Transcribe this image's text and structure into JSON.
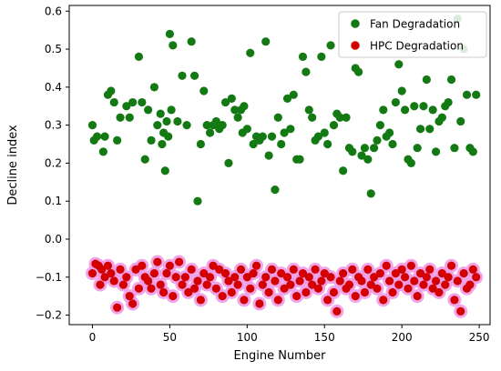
{
  "chart_data": {
    "type": "scatter",
    "xlabel": "Engine Number",
    "ylabel": "Decline index",
    "xlim": [
      -15,
      257
    ],
    "ylim": [
      -0.225,
      0.615
    ],
    "xticks": [
      0,
      50,
      100,
      150,
      200,
      250
    ],
    "yticks": [
      -0.2,
      -0.1,
      0.0,
      0.1,
      0.2,
      0.3,
      0.4,
      0.5,
      0.6
    ],
    "xtick_labels": [
      "0",
      "50",
      "100",
      "150",
      "200",
      "250"
    ],
    "ytick_labels": [
      "−0.2",
      "−0.1",
      "0.0",
      "0.1",
      "0.2",
      "0.3",
      "0.4",
      "0.5",
      "0.6"
    ],
    "grid": false,
    "legend_position": "top-right",
    "series": [
      {
        "name": "Fan Degradation",
        "color": "#137a13",
        "x": [
          0,
          1,
          3,
          7,
          8,
          10,
          12,
          14,
          16,
          18,
          22,
          24,
          26,
          30,
          32,
          34,
          36,
          38,
          40,
          42,
          44,
          45,
          46,
          47,
          48,
          49,
          50,
          51,
          52,
          55,
          58,
          61,
          64,
          66,
          68,
          70,
          72,
          74,
          76,
          78,
          80,
          82,
          84,
          86,
          88,
          90,
          92,
          94,
          96,
          97,
          98,
          100,
          102,
          104,
          106,
          108,
          110,
          112,
          114,
          116,
          118,
          120,
          122,
          124,
          126,
          128,
          130,
          132,
          134,
          136,
          138,
          140,
          142,
          144,
          146,
          148,
          150,
          152,
          154,
          156,
          158,
          160,
          162,
          164,
          166,
          168,
          170,
          172,
          174,
          176,
          178,
          180,
          182,
          184,
          186,
          188,
          190,
          192,
          194,
          196,
          198,
          200,
          202,
          204,
          206,
          208,
          210,
          212,
          214,
          216,
          218,
          220,
          222,
          224,
          226,
          228,
          230,
          232,
          234,
          236,
          238,
          240,
          242,
          244,
          246,
          248
        ],
        "y": [
          0.3,
          0.26,
          0.27,
          0.23,
          0.27,
          0.38,
          0.39,
          0.36,
          0.26,
          0.32,
          0.35,
          0.32,
          0.36,
          0.48,
          0.36,
          0.21,
          0.34,
          0.26,
          0.4,
          0.3,
          0.33,
          0.25,
          0.28,
          0.18,
          0.31,
          0.27,
          0.54,
          0.34,
          0.51,
          0.31,
          0.43,
          0.3,
          0.52,
          0.43,
          0.1,
          0.25,
          0.39,
          0.3,
          0.28,
          0.3,
          0.31,
          0.29,
          0.3,
          0.36,
          0.2,
          0.37,
          0.34,
          0.32,
          0.34,
          0.28,
          0.35,
          0.29,
          0.49,
          0.25,
          0.27,
          0.26,
          0.27,
          0.52,
          0.22,
          0.27,
          0.13,
          0.32,
          0.25,
          0.28,
          0.37,
          0.29,
          0.38,
          0.21,
          0.21,
          0.48,
          0.44,
          0.34,
          0.32,
          0.26,
          0.27,
          0.48,
          0.28,
          0.25,
          0.51,
          0.3,
          0.33,
          0.32,
          0.18,
          0.32,
          0.24,
          0.23,
          0.45,
          0.44,
          0.22,
          0.24,
          0.21,
          0.12,
          0.24,
          0.26,
          0.3,
          0.34,
          0.27,
          0.28,
          0.25,
          0.36,
          0.46,
          0.39,
          0.34,
          0.21,
          0.2,
          0.35,
          0.24,
          0.29,
          0.35,
          0.42,
          0.29,
          0.34,
          0.23,
          0.31,
          0.32,
          0.35,
          0.36,
          0.42,
          0.24,
          0.58,
          0.31,
          0.5,
          0.38,
          0.24,
          0.23,
          0.38
        ],
        "marker": "circle"
      },
      {
        "name": "HPC Degradation",
        "color": "#d40000",
        "x": [
          0,
          2,
          4,
          5,
          6,
          8,
          10,
          12,
          14,
          16,
          18,
          20,
          22,
          24,
          26,
          28,
          30,
          32,
          34,
          36,
          38,
          40,
          42,
          44,
          46,
          48,
          50,
          52,
          54,
          56,
          58,
          60,
          62,
          64,
          66,
          68,
          70,
          72,
          74,
          76,
          78,
          80,
          82,
          84,
          86,
          88,
          90,
          92,
          94,
          96,
          98,
          100,
          102,
          104,
          106,
          108,
          110,
          112,
          114,
          116,
          118,
          120,
          122,
          124,
          126,
          128,
          130,
          132,
          134,
          136,
          138,
          140,
          142,
          144,
          146,
          148,
          150,
          152,
          154,
          156,
          158,
          160,
          162,
          164,
          166,
          168,
          170,
          172,
          174,
          176,
          178,
          180,
          182,
          184,
          186,
          188,
          190,
          192,
          194,
          196,
          198,
          200,
          202,
          204,
          206,
          208,
          210,
          212,
          214,
          216,
          218,
          220,
          222,
          224,
          226,
          228,
          230,
          232,
          234,
          236,
          238,
          240,
          242,
          244,
          246,
          248
        ],
        "y": [
          -0.09,
          -0.065,
          -0.07,
          -0.12,
          -0.08,
          -0.1,
          -0.07,
          -0.09,
          -0.11,
          -0.18,
          -0.08,
          -0.12,
          -0.1,
          -0.15,
          -0.17,
          -0.08,
          -0.13,
          -0.07,
          -0.1,
          -0.11,
          -0.13,
          -0.09,
          -0.06,
          -0.12,
          -0.14,
          -0.09,
          -0.07,
          -0.15,
          -0.1,
          -0.06,
          -0.12,
          -0.1,
          -0.14,
          -0.08,
          -0.13,
          -0.11,
          -0.16,
          -0.09,
          -0.12,
          -0.1,
          -0.07,
          -0.13,
          -0.08,
          -0.15,
          -0.09,
          -0.11,
          -0.14,
          -0.1,
          -0.12,
          -0.08,
          -0.16,
          -0.1,
          -0.13,
          -0.09,
          -0.07,
          -0.17,
          -0.12,
          -0.1,
          -0.14,
          -0.08,
          -0.11,
          -0.16,
          -0.09,
          -0.13,
          -0.1,
          -0.12,
          -0.08,
          -0.15,
          -0.11,
          -0.09,
          -0.14,
          -0.1,
          -0.12,
          -0.08,
          -0.13,
          -0.11,
          -0.09,
          -0.16,
          -0.1,
          -0.14,
          -0.19,
          -0.11,
          -0.09,
          -0.13,
          -0.12,
          -0.08,
          -0.15,
          -0.1,
          -0.11,
          -0.14,
          -0.08,
          -0.12,
          -0.1,
          -0.13,
          -0.09,
          -0.16,
          -0.07,
          -0.11,
          -0.14,
          -0.09,
          -0.12,
          -0.08,
          -0.1,
          -0.13,
          -0.07,
          -0.11,
          -0.15,
          -0.09,
          -0.12,
          -0.1,
          -0.08,
          -0.13,
          -0.11,
          -0.14,
          -0.09,
          -0.12,
          -0.1,
          -0.07,
          -0.16,
          -0.11,
          -0.19,
          -0.09,
          -0.13,
          -0.12,
          -0.08,
          -0.1
        ],
        "marker": "circle"
      }
    ]
  }
}
